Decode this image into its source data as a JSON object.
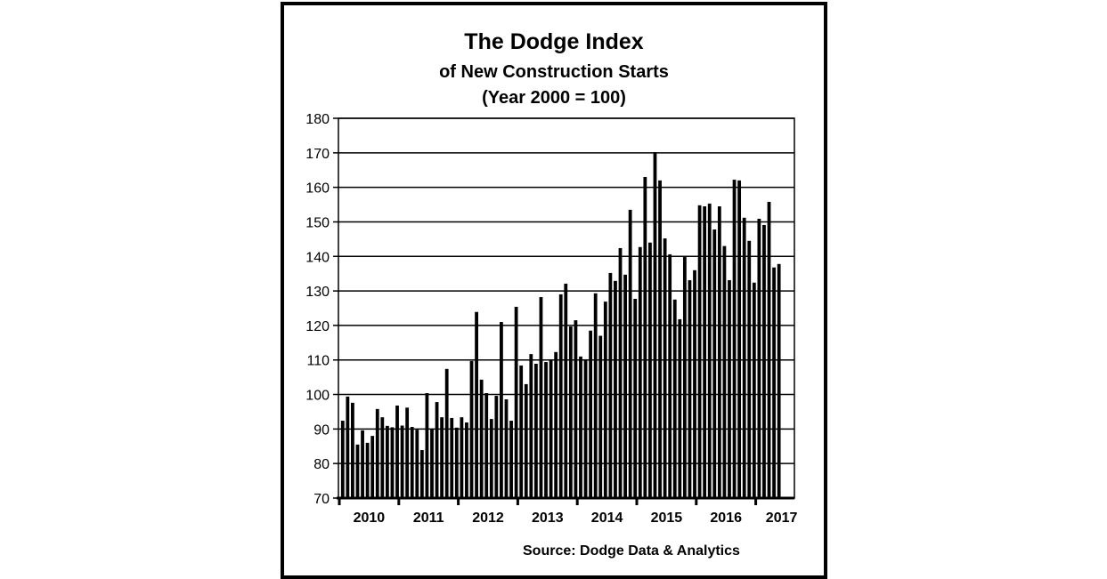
{
  "chart_data": {
    "type": "bar",
    "title": "The Dodge Index",
    "subtitle": "of New Construction Starts",
    "subtitle2": "(Year 2000 = 100)",
    "xlabel": "",
    "ylabel": "",
    "ylim": [
      70,
      180
    ],
    "yticks": [
      70,
      80,
      90,
      100,
      110,
      120,
      130,
      140,
      150,
      160,
      170,
      180
    ],
    "grid": true,
    "legend": "none",
    "x_year_labels": [
      "2010",
      "2011",
      "2012",
      "2013",
      "2014",
      "2015",
      "2016",
      "2017"
    ],
    "categories": [
      "2010-01",
      "2010-02",
      "2010-03",
      "2010-04",
      "2010-05",
      "2010-06",
      "2010-07",
      "2010-08",
      "2010-09",
      "2010-10",
      "2010-11",
      "2010-12",
      "2011-01",
      "2011-02",
      "2011-03",
      "2011-04",
      "2011-05",
      "2011-06",
      "2011-07",
      "2011-08",
      "2011-09",
      "2011-10",
      "2011-11",
      "2011-12",
      "2012-01",
      "2012-02",
      "2012-03",
      "2012-04",
      "2012-05",
      "2012-06",
      "2012-07",
      "2012-08",
      "2012-09",
      "2012-10",
      "2012-11",
      "2012-12",
      "2013-01",
      "2013-02",
      "2013-03",
      "2013-04",
      "2013-05",
      "2013-06",
      "2013-07",
      "2013-08",
      "2013-09",
      "2013-10",
      "2013-11",
      "2013-12",
      "2014-01",
      "2014-02",
      "2014-03",
      "2014-04",
      "2014-05",
      "2014-06",
      "2014-07",
      "2014-08",
      "2014-09",
      "2014-10",
      "2014-11",
      "2014-12",
      "2015-01",
      "2015-02",
      "2015-03",
      "2015-04",
      "2015-05",
      "2015-06",
      "2015-07",
      "2015-08",
      "2015-09",
      "2015-10",
      "2015-11",
      "2015-12",
      "2016-01",
      "2016-02",
      "2016-03",
      "2016-04",
      "2016-05",
      "2016-06",
      "2016-07",
      "2016-08",
      "2016-09",
      "2016-10",
      "2016-11",
      "2016-12",
      "2017-01",
      "2017-02",
      "2017-03",
      "2017-04",
      "2017-05"
    ],
    "values": [
      92.4,
      99.4,
      97.6,
      85.5,
      89.6,
      86.0,
      88.0,
      95.8,
      93.4,
      90.9,
      90.5,
      96.8,
      91.0,
      96.2,
      90.6,
      89.8,
      83.9,
      100.4,
      90.0,
      97.8,
      93.4,
      107.4,
      93.2,
      90.4,
      93.4,
      91.9,
      109.7,
      123.9,
      104.3,
      100.4,
      92.9,
      99.6,
      121.0,
      98.6,
      92.4,
      125.4,
      108.4,
      103.0,
      111.7,
      108.9,
      128.2,
      109.4,
      110.2,
      112.3,
      129.0,
      132.1,
      119.7,
      121.5,
      111.0,
      110.2,
      118.5,
      129.3,
      117.0,
      126.9,
      135.2,
      132.9,
      142.4,
      134.7,
      153.5,
      127.7,
      142.7,
      163.0,
      144.0,
      170.2,
      162.0,
      145.2,
      140.6,
      127.5,
      121.8,
      139.8,
      133.1,
      136.0,
      154.8,
      154.5,
      155.3,
      147.8,
      154.5,
      143.0,
      133.1,
      162.2,
      162.0,
      151.2,
      144.5,
      132.4,
      150.9,
      149.1,
      155.8,
      136.8,
      137.8
    ],
    "bar_color": "#000000",
    "annotation": "Source:  Dodge Data & Analytics"
  },
  "header": {
    "title": "The Dodge Index",
    "subtitle": "of New Construction Starts",
    "base_note": "(Year 2000 = 100)"
  },
  "footer": {
    "source": "Source:  Dodge Data & Analytics"
  }
}
